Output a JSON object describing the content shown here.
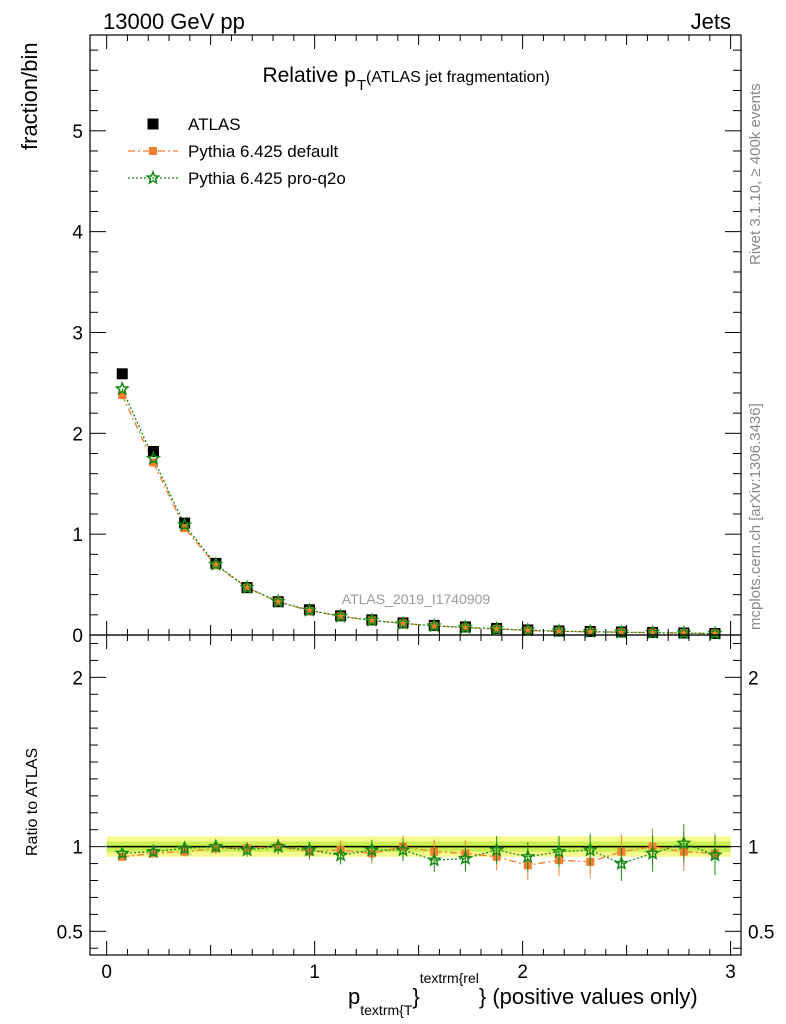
{
  "header": {
    "left": "13000 GeV pp",
    "right": "Jets"
  },
  "side_labels": {
    "rivet": "Rivet 3.1.10, ≥ 400k events",
    "mcplots": "mcplots.cern.ch [arXiv:1306.3436]"
  },
  "watermark": "ATLAS_2019_I1740909",
  "title": {
    "main": "Relative p",
    "sub": "T",
    "extra": "(ATLAS jet fragmentation)"
  },
  "axes": {
    "ylabel_top": "fraction/bin",
    "ylabel_bottom": "Ratio to ATLAS",
    "xlabel": {
      "p": "p",
      "sub": "textrm{T",
      "brace": "}",
      "sup": "textrm{rel",
      "rest": "} (positive values only)"
    }
  },
  "colors": {
    "atlas": "#000000",
    "default": "#f47f30",
    "proq2o": "#148a14",
    "band_inner": "#c8f050",
    "band_outer": "#f8f890"
  },
  "chart_data": {
    "type": "scatter",
    "x": [
      0.075,
      0.225,
      0.375,
      0.525,
      0.675,
      0.825,
      0.975,
      1.125,
      1.275,
      1.425,
      1.575,
      1.725,
      1.875,
      2.025,
      2.175,
      2.325,
      2.475,
      2.625,
      2.775,
      2.925
    ],
    "xlim": [
      -0.08,
      3.05
    ],
    "xticks": [
      "0",
      "1",
      "2",
      "3"
    ],
    "top_panel": {
      "ylim": [
        0,
        5.95
      ],
      "yticks": [
        "0",
        "1",
        "2",
        "3",
        "4",
        "5"
      ],
      "series": [
        {
          "name": "ATLAS",
          "marker": "square",
          "values": [
            2.59,
            1.82,
            1.11,
            0.71,
            0.47,
            0.33,
            0.25,
            0.19,
            0.15,
            0.12,
            0.095,
            0.08,
            0.065,
            0.05,
            0.04,
            0.035,
            0.03,
            0.025,
            0.02,
            0.015
          ]
        },
        {
          "name": "Pythia 6.425 default",
          "marker": "square-small",
          "line": "dashdot",
          "values": [
            2.38,
            1.71,
            1.06,
            0.69,
            0.47,
            0.33,
            0.24,
            0.185,
            0.145,
            0.115,
            0.09,
            0.075,
            0.06,
            0.045,
            0.037,
            0.032,
            0.028,
            0.024,
            0.019,
            0.014
          ]
        },
        {
          "name": "Pythia 6.425 pro-q2o",
          "marker": "star",
          "line": "dotted",
          "values": [
            2.44,
            1.75,
            1.09,
            0.7,
            0.47,
            0.33,
            0.245,
            0.185,
            0.145,
            0.115,
            0.09,
            0.075,
            0.06,
            0.047,
            0.038,
            0.033,
            0.027,
            0.024,
            0.02,
            0.014
          ]
        }
      ]
    },
    "ratio_panel": {
      "ylim": [
        0.36,
        2.25
      ],
      "yticks": [
        "0.5",
        "1",
        "2"
      ],
      "band": {
        "inner": [
          0.97,
          1.03
        ],
        "outer": [
          0.94,
          1.06
        ]
      },
      "series": [
        {
          "name": "Pythia 6.425 default",
          "values": [
            0.94,
            0.96,
            0.97,
            0.99,
            0.99,
            1.0,
            0.97,
            0.98,
            0.96,
            1.0,
            0.97,
            0.96,
            0.94,
            0.89,
            0.92,
            0.91,
            0.97,
            1.0,
            0.97,
            0.96
          ]
        },
        {
          "name": "Pythia 6.425 pro-q2o",
          "values": [
            0.96,
            0.97,
            0.99,
            1.0,
            0.98,
            1.0,
            0.98,
            0.95,
            0.98,
            0.98,
            0.92,
            0.93,
            0.98,
            0.94,
            0.97,
            0.98,
            0.9,
            0.96,
            1.02,
            0.95
          ]
        }
      ]
    }
  }
}
